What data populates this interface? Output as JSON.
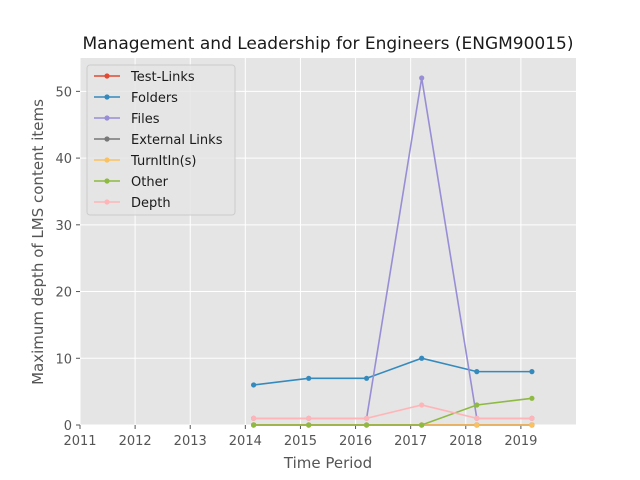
{
  "chart_data": {
    "type": "line",
    "title": "Management and Leadership for Engineers (ENGM90015)",
    "xlabel": "Time Period",
    "ylabel": "Maximum depth of LMS content items",
    "xlim": [
      2011,
      2020
    ],
    "ylim": [
      0,
      55
    ],
    "xticks": [
      "2011",
      "2012",
      "2013",
      "2014",
      "2015",
      "2016",
      "2017",
      "2018",
      "2019"
    ],
    "yticks": [
      "0",
      "10",
      "20",
      "30",
      "40",
      "50"
    ],
    "grid": true,
    "legend_position": "upper-left",
    "x": [
      2014.15,
      2015.15,
      2016.2,
      2017.2,
      2018.2,
      2019.2
    ],
    "series": [
      {
        "name": "Test-Links",
        "color": "#E24A33",
        "values": [
          0,
          0,
          0,
          0,
          0,
          0
        ]
      },
      {
        "name": "Folders",
        "color": "#348ABD",
        "values": [
          6,
          7,
          7,
          10,
          8,
          8
        ]
      },
      {
        "name": "Files",
        "color": "#988ED5",
        "values": [
          1,
          1,
          1,
          52,
          1,
          1
        ]
      },
      {
        "name": "External Links",
        "color": "#777777",
        "values": [
          0,
          0,
          0,
          0,
          0,
          0
        ]
      },
      {
        "name": "TurnItIn(s)",
        "color": "#FBC15E",
        "values": [
          0,
          0,
          0,
          0,
          0,
          0
        ]
      },
      {
        "name": "Other",
        "color": "#8EBA42",
        "values": [
          0,
          0,
          0,
          0,
          3,
          4
        ]
      },
      {
        "name": "Depth",
        "color": "#FFB5B8",
        "values": [
          1,
          1,
          1,
          3,
          1,
          1
        ]
      }
    ]
  }
}
